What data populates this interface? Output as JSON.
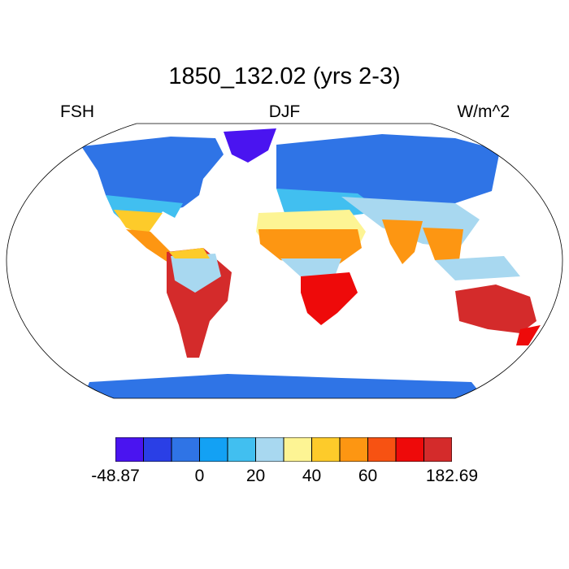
{
  "title": "1850_132.02 (yrs 2-3)",
  "left_label": "FSH",
  "center_label": "DJF",
  "right_label": "W/m^2",
  "colorbar": {
    "colors": [
      "#4a14f0",
      "#2a3fe6",
      "#2f74e6",
      "#13a1f4",
      "#41bff0",
      "#a8d8f0",
      "#fdf494",
      "#fdcb2a",
      "#fd9612",
      "#f75212",
      "#ee0a0a",
      "#d42b2b"
    ],
    "tick_labels": [
      "-48.87",
      "0",
      "20",
      "40",
      "60",
      "182.69"
    ],
    "tick_box_edges": [
      0,
      3,
      5,
      7,
      9,
      12
    ]
  },
  "chart_data": {
    "type": "heatmap",
    "projection": "Robinson",
    "variable": "FSH",
    "season": "DJF",
    "units": "W/m^2",
    "range": [
      -48.87,
      182.69
    ],
    "levels": [
      "-48.87",
      "0",
      "20",
      "40",
      "60",
      "182.69"
    ]
  }
}
